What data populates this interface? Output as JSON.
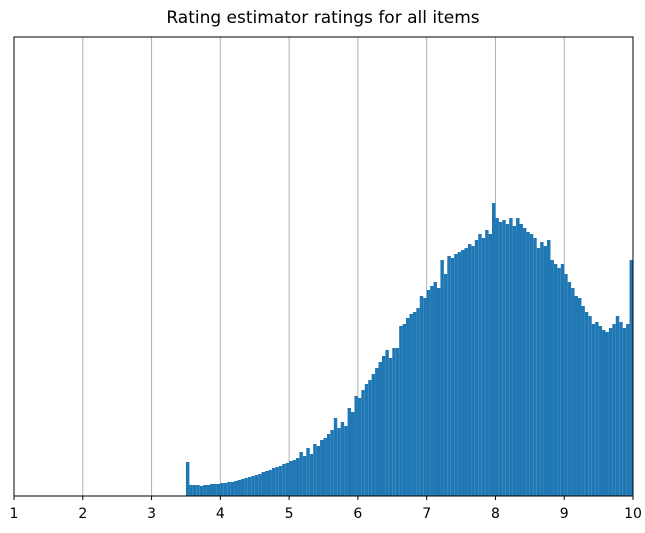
{
  "chart_data": {
    "type": "histogram",
    "title": "Rating estimator ratings for all items",
    "bins": [
      3.5,
      3.55,
      3.6,
      3.65,
      3.7,
      3.75,
      3.8,
      3.85,
      3.9,
      3.95,
      4,
      4.05,
      4.1,
      4.15,
      4.2,
      4.25,
      4.3,
      4.35,
      4.4,
      4.45,
      4.5,
      4.55,
      4.6,
      4.65,
      4.7,
      4.75,
      4.8,
      4.85,
      4.9,
      4.95,
      5,
      5.05,
      5.1,
      5.15,
      5.2,
      5.25,
      5.3,
      5.35,
      5.4,
      5.45,
      5.5,
      5.55,
      5.6,
      5.65,
      5.7,
      5.75,
      5.8,
      5.85,
      5.9,
      5.95,
      6,
      6.05,
      6.1,
      6.15,
      6.2,
      6.25,
      6.3,
      6.35,
      6.4,
      6.45,
      6.5,
      6.55,
      6.6,
      6.65,
      6.7,
      6.75,
      6.8,
      6.85,
      6.9,
      6.95,
      7,
      7.05,
      7.1,
      7.15,
      7.2,
      7.25,
      7.3,
      7.35,
      7.4,
      7.45,
      7.5,
      7.55,
      7.6,
      7.65,
      7.7,
      7.75,
      7.8,
      7.85,
      7.9,
      7.95,
      8,
      8.05,
      8.1,
      8.15,
      8.2,
      8.25,
      8.3,
      8.35,
      8.4,
      8.45,
      8.5,
      8.55,
      8.6,
      8.65,
      8.7,
      8.75,
      8.8,
      8.85,
      8.9,
      8.95,
      9,
      9.05,
      9.1,
      9.15,
      9.2,
      9.25,
      9.3,
      9.35,
      9.4,
      9.45,
      9.5,
      9.55,
      9.6,
      9.65,
      9.7,
      9.75,
      9.8,
      9.85,
      9.9,
      9.95,
      10
    ],
    "values": [
      34,
      11,
      11,
      11,
      10,
      11,
      11,
      12,
      12,
      12,
      13,
      13,
      14,
      14,
      15,
      16,
      17,
      18,
      19,
      20,
      21,
      22,
      24,
      25,
      26,
      28,
      29,
      30,
      32,
      33,
      35,
      36,
      38,
      44,
      40,
      48,
      42,
      52,
      50,
      56,
      58,
      62,
      66,
      78,
      68,
      74,
      70,
      88,
      84,
      100,
      98,
      106,
      112,
      116,
      122,
      128,
      134,
      140,
      146,
      138,
      148,
      148,
      170,
      172,
      178,
      182,
      184,
      188,
      200,
      198,
      206,
      210,
      214,
      208,
      236,
      222,
      240,
      238,
      242,
      244,
      246,
      248,
      252,
      250,
      256,
      262,
      258,
      266,
      262,
      293,
      278,
      274,
      276,
      272,
      278,
      270,
      278,
      272,
      268,
      264,
      262,
      258,
      248,
      254,
      250,
      256,
      236,
      232,
      228,
      232,
      222,
      214,
      208,
      200,
      198,
      190,
      184,
      180,
      172,
      174,
      170,
      166,
      164,
      168,
      172,
      180,
      174,
      168,
      172,
      236
    ],
    "color": "#1f77b4",
    "xlim": [
      1,
      10
    ],
    "xticks": [
      1,
      2,
      3,
      4,
      5,
      6,
      7,
      8,
      9,
      10
    ],
    "ylim": [
      0,
      459
    ],
    "grid": "x"
  }
}
